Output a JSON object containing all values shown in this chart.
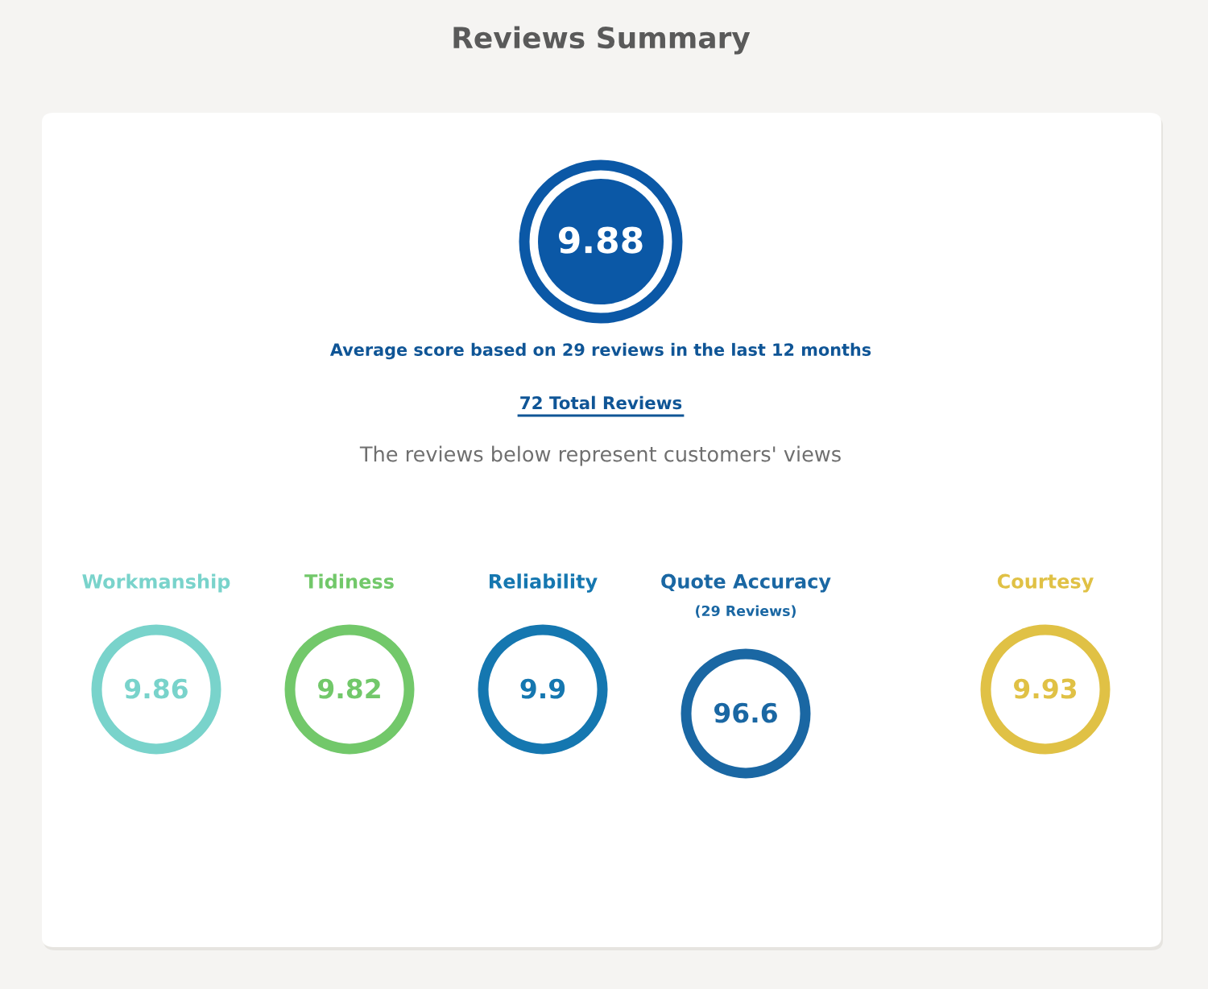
{
  "chart_data": [
    {
      "type": "other",
      "title": "Reviews Summary",
      "values": [
        9.88
      ],
      "colors": [
        "#0b58a6"
      ],
      "data_labels": true,
      "annotations": [
        "Average score based on 29 reviews in the last 12 months",
        "72 Total Reviews",
        "The reviews below represent customers' views"
      ]
    },
    {
      "type": "other",
      "title": "Workmanship",
      "values": [
        9.86
      ],
      "colors": [
        "#79d3cb"
      ],
      "data_labels": true
    },
    {
      "type": "other",
      "title": "Tidiness",
      "values": [
        9.82
      ],
      "colors": [
        "#72c86a"
      ],
      "data_labels": true
    },
    {
      "type": "other",
      "title": "Reliability",
      "values": [
        9.9
      ],
      "colors": [
        "#1577b0"
      ],
      "data_labels": true
    },
    {
      "type": "other",
      "title": "Quote Accuracy",
      "subtitle": "(29 Reviews)",
      "values": [
        96.6
      ],
      "colors": [
        "#1a67a3"
      ],
      "data_labels": true
    },
    {
      "type": "other",
      "title": "Courtesy",
      "values": [
        9.93
      ],
      "colors": [
        "#e0c145"
      ],
      "data_labels": true
    }
  ]
}
